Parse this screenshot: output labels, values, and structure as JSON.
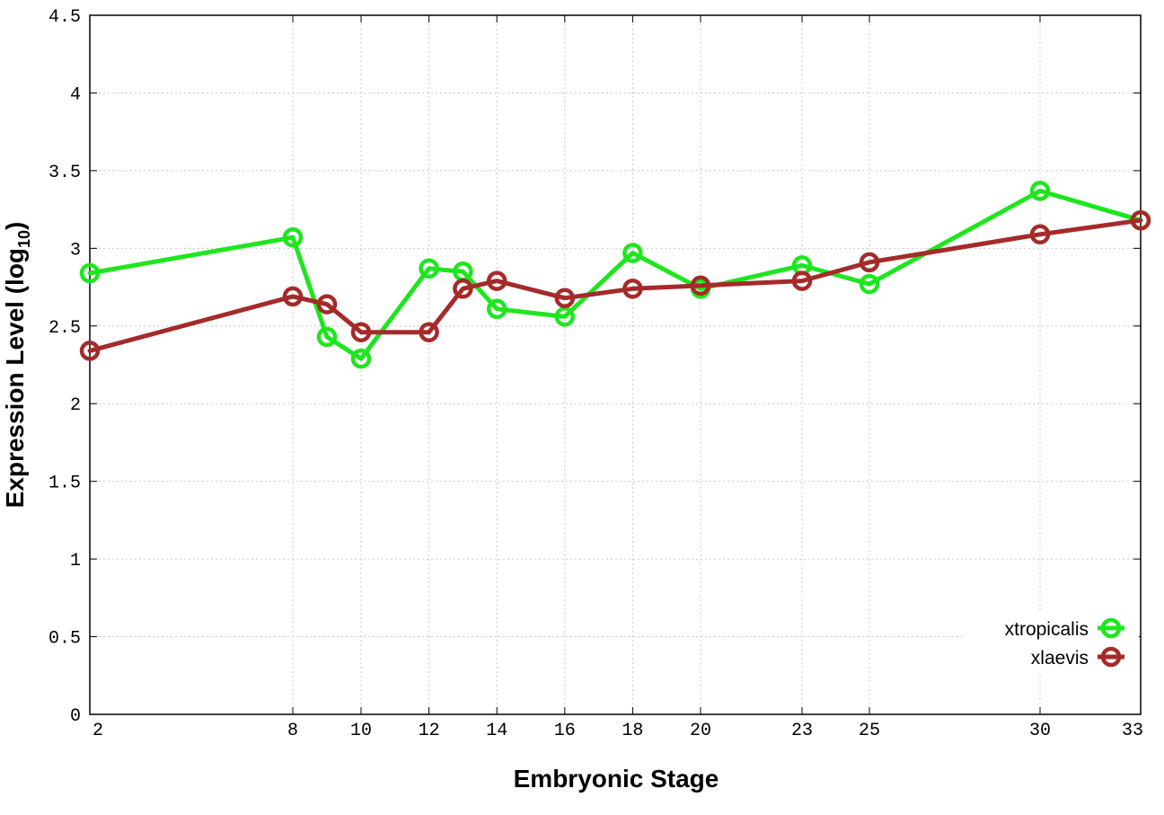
{
  "chart_data": {
    "type": "line",
    "xlabel": "Embryonic Stage",
    "ylabel_main": "Expression Level (log",
    "ylabel_sub": "10",
    "ylabel_close": ")",
    "x_tick_labels": [
      "2",
      "8",
      "10",
      "12",
      "14",
      "16",
      "18",
      "20",
      "23",
      "25",
      "30",
      "33"
    ],
    "y_tick_labels": [
      "0",
      "0.5",
      "1",
      "1.5",
      "2",
      "2.5",
      "3",
      "3.5",
      "4",
      "4.5"
    ],
    "ylim": [
      0,
      4.5
    ],
    "grid": true,
    "legend_position": "bottom-right",
    "series": [
      {
        "name": "xtropicalis",
        "color": "#1ee61e",
        "x": [
          "2",
          "8",
          "9",
          "10",
          "12",
          "13",
          "14",
          "16",
          "18",
          "20",
          "23",
          "25",
          "30",
          "33"
        ],
        "values": [
          2.84,
          3.07,
          2.43,
          2.29,
          2.87,
          2.85,
          2.61,
          2.56,
          2.97,
          2.74,
          2.89,
          2.77,
          3.37,
          3.18
        ]
      },
      {
        "name": "xlaevis",
        "color": "#a52a2a",
        "x": [
          "2",
          "8",
          "9",
          "10",
          "12",
          "13",
          "14",
          "16",
          "18",
          "20",
          "23",
          "25",
          "30",
          "33"
        ],
        "values": [
          2.34,
          2.69,
          2.64,
          2.46,
          2.46,
          2.74,
          2.79,
          2.68,
          2.74,
          2.76,
          2.79,
          2.91,
          3.09,
          3.18
        ]
      }
    ]
  }
}
